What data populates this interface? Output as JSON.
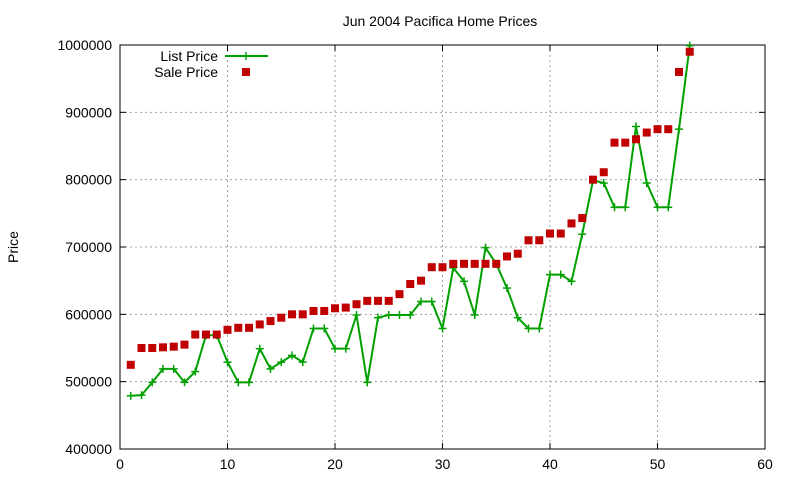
{
  "chart_data": {
    "type": "line",
    "title": "Jun 2004 Pacifica Home Prices",
    "xlabel": "",
    "ylabel": "Price",
    "xlim": [
      0,
      60
    ],
    "ylim": [
      400000,
      1000000
    ],
    "x_ticks": [
      0,
      10,
      20,
      30,
      40,
      50,
      60
    ],
    "y_ticks": [
      400000,
      500000,
      600000,
      700000,
      800000,
      900000,
      1000000
    ],
    "grid": true,
    "legend_position": "top-left",
    "series": [
      {
        "name": "List Price",
        "style": "line+cross",
        "color": "#00a000",
        "x": [
          1,
          2,
          3,
          4,
          5,
          6,
          7,
          8,
          9,
          10,
          11,
          12,
          13,
          14,
          15,
          16,
          17,
          18,
          19,
          20,
          21,
          22,
          23,
          24,
          25,
          26,
          27,
          28,
          29,
          30,
          31,
          32,
          33,
          34,
          35,
          36,
          37,
          38,
          39,
          40,
          41,
          42,
          43,
          44,
          45,
          46,
          47,
          48,
          49,
          50,
          51,
          52,
          53
        ],
        "y": [
          479000,
          480000,
          499000,
          519000,
          519000,
          499000,
          515000,
          569000,
          569000,
          529000,
          499000,
          499000,
          549000,
          519000,
          529000,
          539000,
          529000,
          579000,
          579000,
          549000,
          549000,
          599000,
          499000,
          595000,
          599000,
          599000,
          599000,
          619000,
          619000,
          579000,
          669000,
          649000,
          599000,
          699000,
          675000,
          639000,
          595000,
          579000,
          579000,
          659000,
          659000,
          649000,
          719000,
          799000,
          795000,
          759000,
          759000,
          879000,
          795000,
          759000,
          759000,
          875000,
          999000
        ]
      },
      {
        "name": "Sale Price",
        "style": "square-markers",
        "color": "#c00000",
        "x": [
          1,
          2,
          3,
          4,
          5,
          6,
          7,
          8,
          9,
          10,
          11,
          12,
          13,
          14,
          15,
          16,
          17,
          18,
          19,
          20,
          21,
          22,
          23,
          24,
          25,
          26,
          27,
          28,
          29,
          30,
          31,
          32,
          33,
          34,
          35,
          36,
          37,
          38,
          39,
          40,
          41,
          42,
          43,
          44,
          45,
          46,
          47,
          48,
          49,
          50,
          51,
          52,
          53
        ],
        "y": [
          525000,
          550000,
          550000,
          551000,
          552000,
          555000,
          570000,
          570000,
          570000,
          577000,
          580000,
          580000,
          585000,
          590000,
          595000,
          600000,
          600000,
          605000,
          605000,
          609000,
          610000,
          615000,
          620000,
          620000,
          620000,
          630000,
          645000,
          650000,
          670000,
          670000,
          675000,
          675000,
          675000,
          675000,
          675000,
          686000,
          690000,
          710000,
          710000,
          720000,
          720000,
          735000,
          743000,
          800000,
          811000,
          855000,
          855000,
          860000,
          870000,
          875000,
          875000,
          960000,
          990000
        ]
      }
    ]
  }
}
